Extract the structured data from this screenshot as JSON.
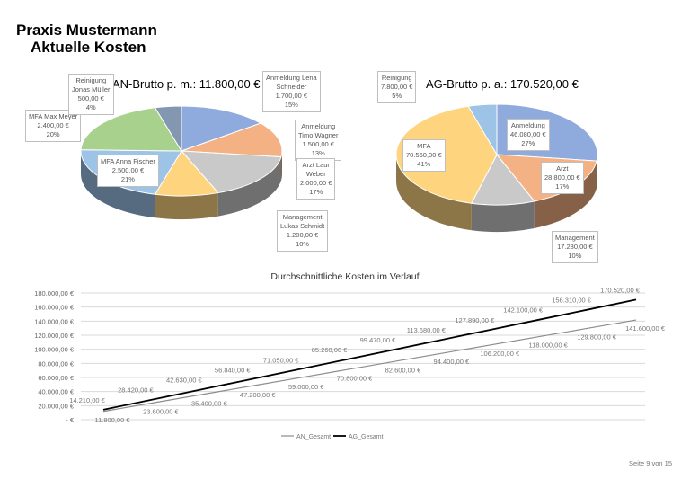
{
  "header": {
    "title": "Praxis Mustermann",
    "subtitle": "Aktuelle Kosten"
  },
  "footer": {
    "page": "Seite 9 von 15"
  },
  "chart_data": [
    {
      "type": "pie",
      "title": "AN-Brutto p. m.: 11.800,00  €",
      "slices": [
        {
          "name": "Anmeldung Lena Schneider",
          "value": 1700,
          "value_label": "1.700,00 €",
          "percent": "15%",
          "color": "#8faadc",
          "lines": [
            "Anmeldung Lena",
            "Schneider"
          ]
        },
        {
          "name": "Anmeldung Timo Wagner",
          "value": 1500,
          "value_label": "1.500,00 €",
          "percent": "13%",
          "color": "#f4b183",
          "lines": [
            "Anmeldung",
            "Timo Wagner"
          ]
        },
        {
          "name": "Arzt Laur Weber",
          "value": 2000,
          "value_label": "2.000,00 €",
          "percent": "17%",
          "color": "#c9c9c9",
          "lines": [
            "Arzt Laur",
            "Weber"
          ]
        },
        {
          "name": "Management Lukas Schmidt",
          "value": 1200,
          "value_label": "1.200,00 €",
          "percent": "10%",
          "color": "#ffd47f",
          "lines": [
            "Management",
            "Lukas Schmidt"
          ]
        },
        {
          "name": "MFA Anna Fischer",
          "value": 2500,
          "value_label": "2.500,00 €",
          "percent": "21%",
          "color": "#9dc3e6",
          "lines": [
            "MFA Anna Fischer"
          ]
        },
        {
          "name": "MFA Max Meyer",
          "value": 2400,
          "value_label": "2.400,00 €",
          "percent": "20%",
          "color": "#a9d18e",
          "lines": [
            "MFA Max Meyer"
          ]
        },
        {
          "name": "Reinigung Jonas Müller",
          "value": 500,
          "value_label": "500,00 €",
          "percent": "4%",
          "color": "#8497b0",
          "lines": [
            "Reinigung",
            "Jonas Müller"
          ]
        }
      ]
    },
    {
      "type": "pie",
      "title": "AG-Brutto p. a.: 170.520,00  €",
      "slices": [
        {
          "name": "Anmeldung",
          "value": 46080,
          "value_label": "46.080,00 €",
          "percent": "27%",
          "color": "#8faadc",
          "lines": [
            "Anmeldung"
          ]
        },
        {
          "name": "Arzt",
          "value": 28800,
          "value_label": "28.800,00 €",
          "percent": "17%",
          "color": "#f4b183",
          "lines": [
            "Arzt"
          ]
        },
        {
          "name": "Management",
          "value": 17280,
          "value_label": "17.280,00 €",
          "percent": "10%",
          "color": "#c9c9c9",
          "lines": [
            "Management"
          ]
        },
        {
          "name": "MFA",
          "value": 70560,
          "value_label": "70.560,00 €",
          "percent": "41%",
          "color": "#ffd47f",
          "lines": [
            "MFA"
          ]
        },
        {
          "name": "Reinigung",
          "value": 7800,
          "value_label": "7.800,00 €",
          "percent": "5%",
          "color": "#9dc3e6",
          "lines": [
            "Reinigung"
          ]
        }
      ]
    },
    {
      "type": "line",
      "title": "Durchschnittliche  Kosten  im Verlauf",
      "ylim": [
        0,
        180000
      ],
      "yticks": [
        "-  €",
        "20.000,00 €",
        "40.000,00 €",
        "60.000,00 €",
        "80.000,00 €",
        "100.000,00 €",
        "120.000,00 €",
        "140.000,00 €",
        "160.000,00 €",
        "180.000,00 €"
      ],
      "grid": true,
      "legend": "bottom",
      "series": [
        {
          "name": "AN_Gesamt",
          "color": "#8c8c8c",
          "values": [
            11800,
            23600,
            35400,
            47200,
            59000,
            70800,
            82600,
            94400,
            106200,
            118000,
            129800,
            141600
          ],
          "labels": [
            "11.800,00 €",
            "23.600,00 €",
            "35.400,00 €",
            "47.200,00 €",
            "59.000,00 €",
            "70.800,00 €",
            "82.600,00 €",
            "94.400,00 €",
            "106.200,00 €",
            "118.000,00 €",
            "129.800,00 €",
            "141.600,00 €"
          ]
        },
        {
          "name": "AG_Gesamt",
          "color": "#000000",
          "values": [
            14210,
            28420,
            42630,
            56840,
            71050,
            85260,
            99470,
            113680,
            127890,
            142100,
            156310,
            170520
          ],
          "labels": [
            "14.210,00 €",
            "28.420,00 €",
            "42.630,00 €",
            "56.840,00 €",
            "71.050,00 €",
            "85.260,00 €",
            "99.470,00 €",
            "113.680,00 €",
            "127.890,00 €",
            "142.100,00 €",
            "156.310,00 €",
            "170.520,00 €"
          ]
        }
      ]
    }
  ]
}
